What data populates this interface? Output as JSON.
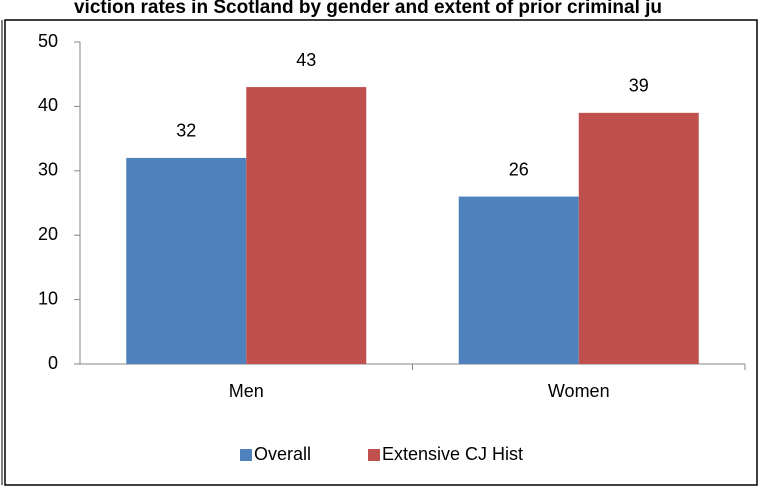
{
  "chart_data": {
    "type": "bar",
    "title": "viction rates in Scotland by gender and extent of prior criminal ju",
    "categories": [
      "Men",
      "Women"
    ],
    "series": [
      {
        "name": "Overall",
        "color": "#4f81bd",
        "values": [
          32,
          26
        ]
      },
      {
        "name": "Extensive CJ Hist",
        "color": "#c0504d",
        "values": [
          43,
          39
        ]
      }
    ],
    "ylim": [
      0,
      50
    ],
    "yticks": [
      0,
      10,
      20,
      30,
      40,
      50
    ],
    "grid": false,
    "legend": "bottom"
  }
}
